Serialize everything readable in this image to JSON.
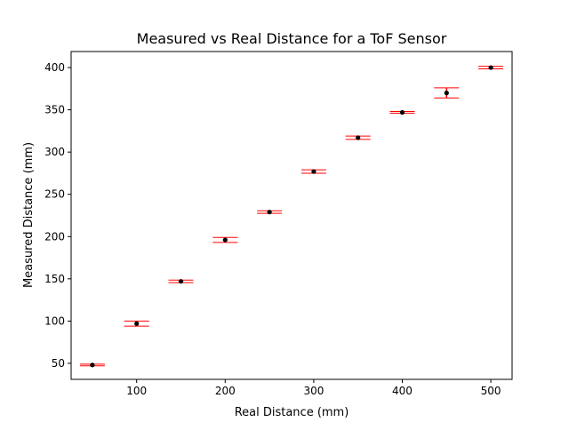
{
  "chart_data": {
    "type": "scatter",
    "title": "Measured vs Real Distance for a ToF Sensor",
    "xlabel": "Real Distance (mm)",
    "ylabel": "Measured Distance (mm)",
    "xlim": [
      26,
      524
    ],
    "ylim": [
      31,
      419
    ],
    "xticks": [
      100,
      200,
      300,
      400,
      500
    ],
    "yticks": [
      50,
      100,
      150,
      200,
      250,
      300,
      350,
      400
    ],
    "grid": false,
    "legend": "none",
    "colors": {
      "point": "#000000",
      "errorbar": "#ff0000",
      "axis": "#000000"
    },
    "points": [
      {
        "x": 50,
        "y": 48,
        "err": 1
      },
      {
        "x": 100,
        "y": 97,
        "err": 3
      },
      {
        "x": 150,
        "y": 147,
        "err": 1.5
      },
      {
        "x": 200,
        "y": 196,
        "err": 3
      },
      {
        "x": 250,
        "y": 229,
        "err": 1.5
      },
      {
        "x": 300,
        "y": 277,
        "err": 2
      },
      {
        "x": 350,
        "y": 317,
        "err": 2
      },
      {
        "x": 400,
        "y": 347,
        "err": 1
      },
      {
        "x": 450,
        "y": 370,
        "err": 6
      },
      {
        "x": 500,
        "y": 400,
        "err": 1.5
      }
    ]
  }
}
